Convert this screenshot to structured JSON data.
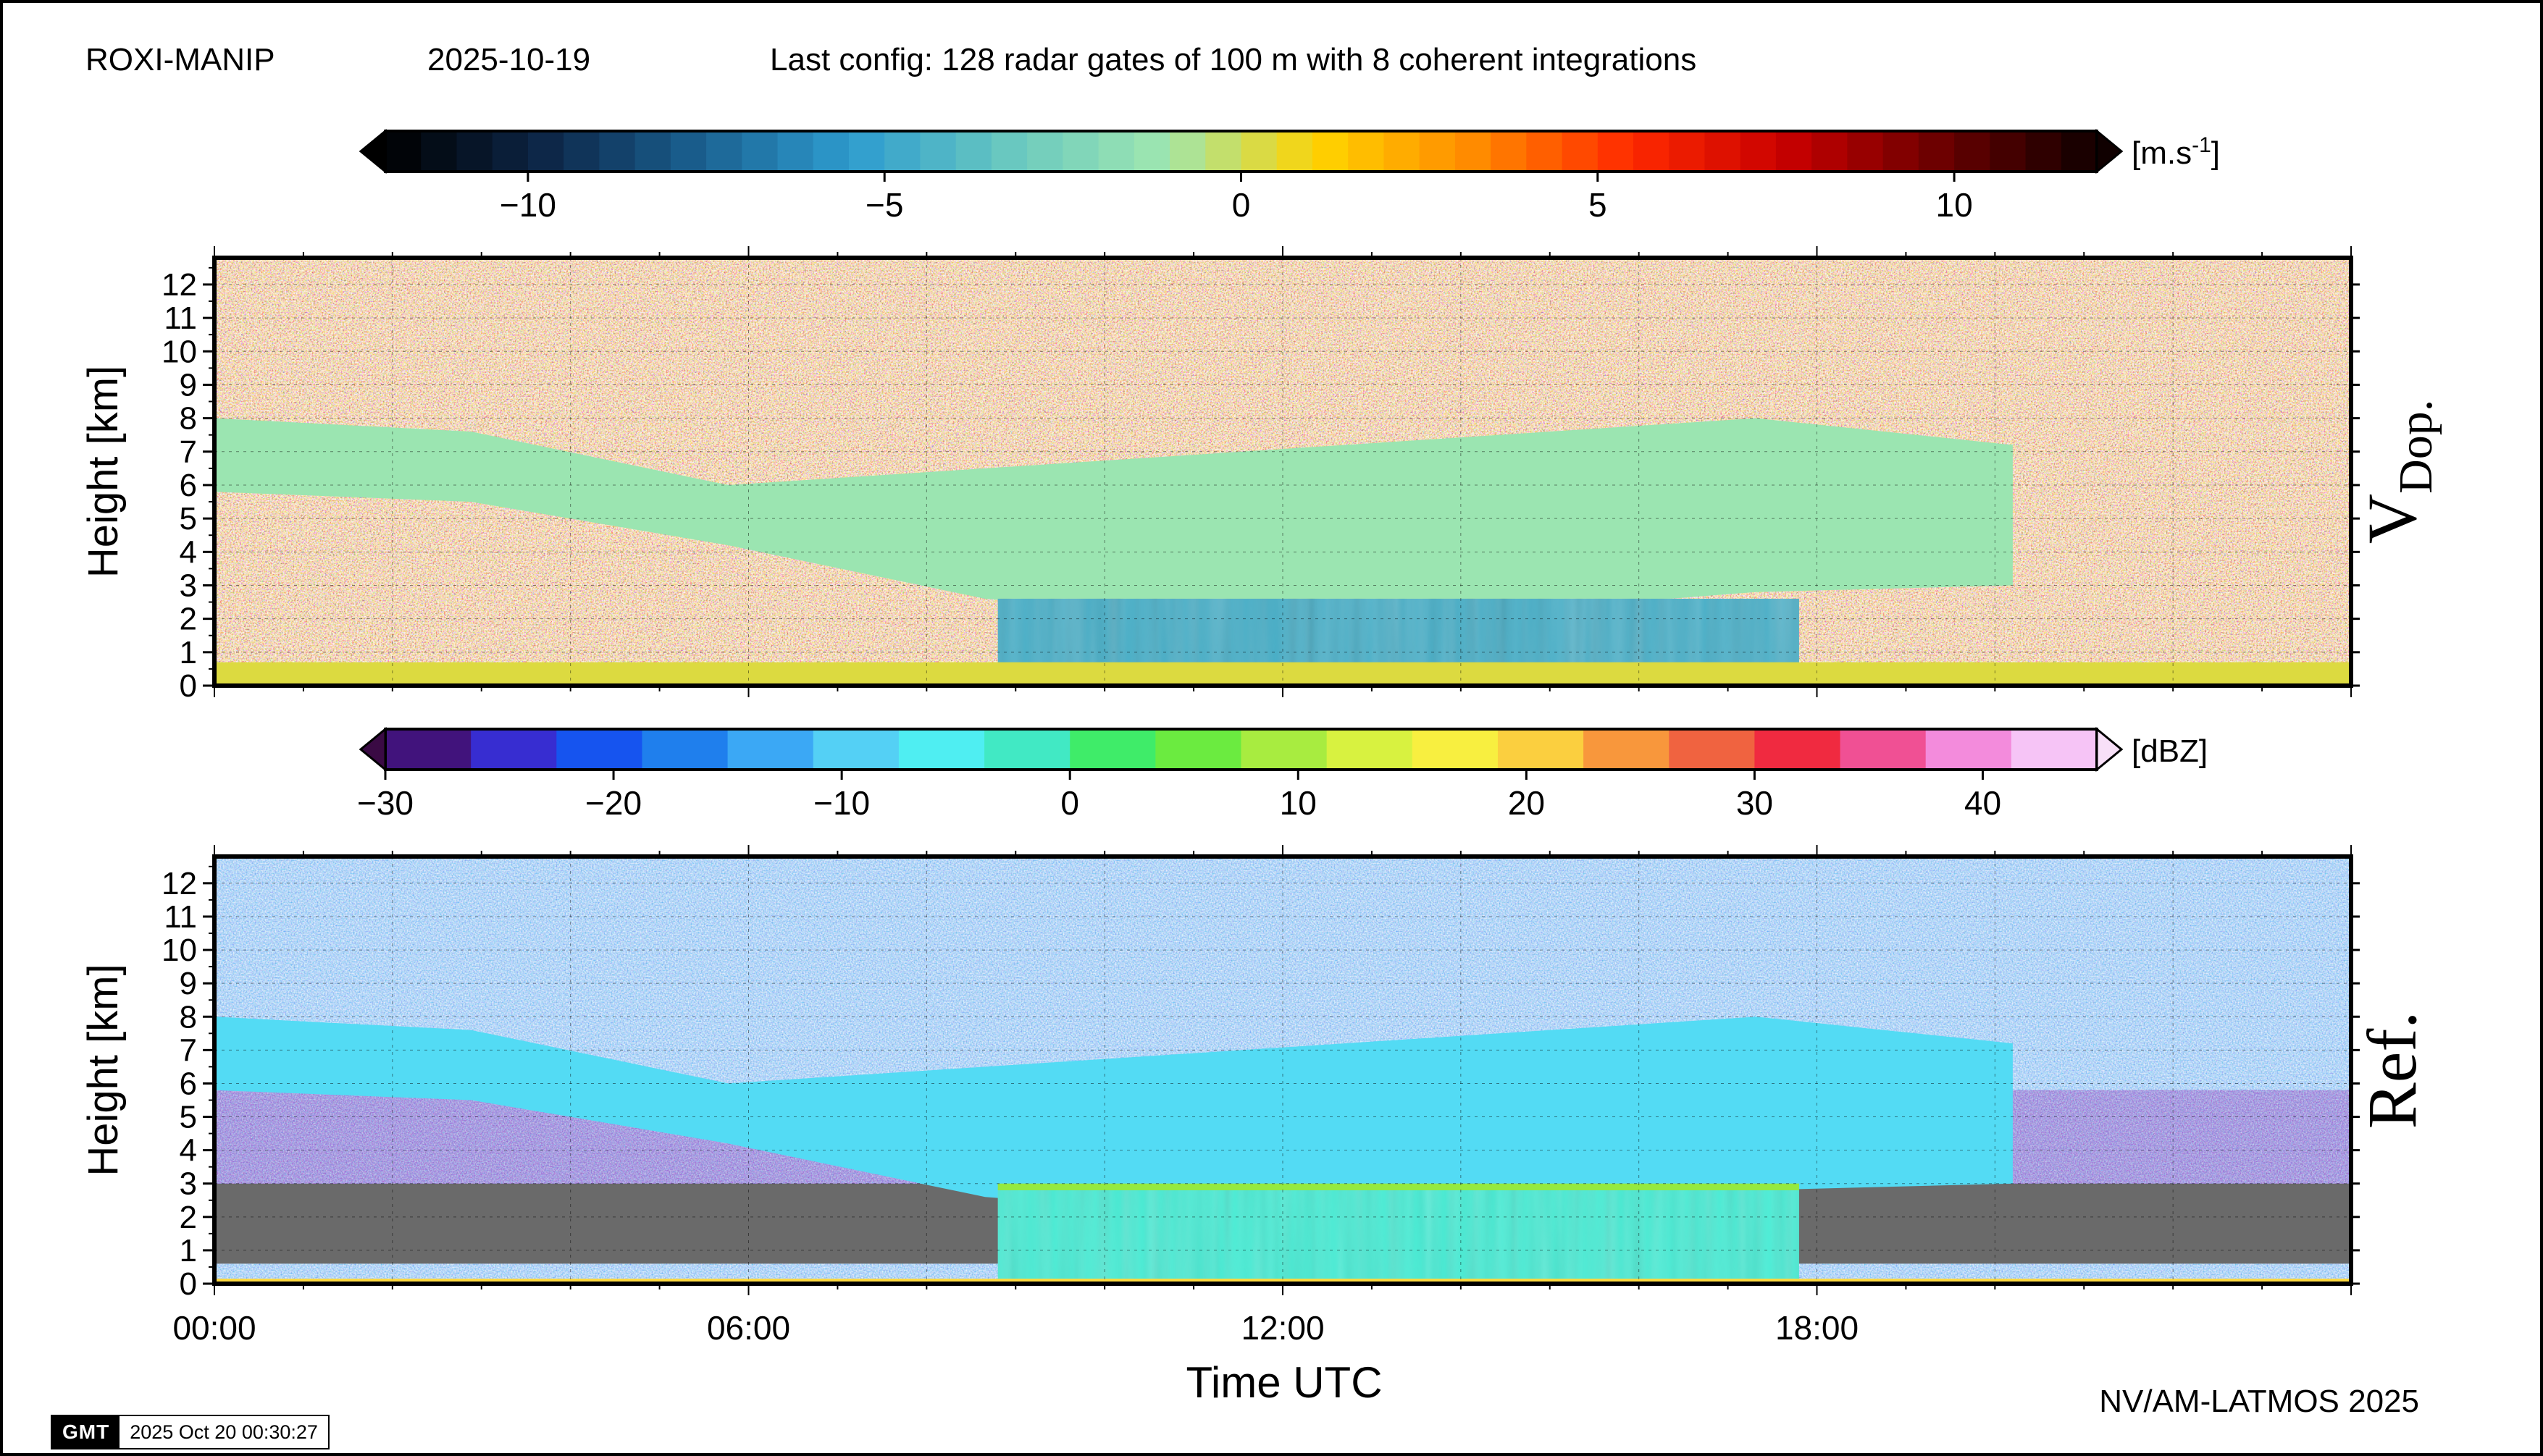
{
  "header": {
    "station": "ROXI-MANIP",
    "date": "2025-10-19",
    "config": "Last config: 128 radar gates of 100 m with 8 coherent integrations"
  },
  "footer": {
    "credit": "NV/AM-LATMOS 2025",
    "gmt_logo": "GMT",
    "gmt_timestamp": "2025 Oct 20 00:30:27"
  },
  "colors": {
    "velocity_stops": [
      "#000000",
      "#0d2546",
      "#1a5f8f",
      "#2e9ccf",
      "#68c8c0",
      "#9ee6b0",
      "#ffd300",
      "#ff8a00",
      "#ff2a00",
      "#c80000",
      "#6a0000",
      "#100000"
    ],
    "reflectivity_stops": [
      "#3a0a44",
      "#4a1fc0",
      "#1448f0",
      "#1a78ec",
      "#3aa6f5",
      "#55d2f5",
      "#4ef3f2",
      "#3de6b5",
      "#40ef40",
      "#8ee840",
      "#c8f040",
      "#f7f740",
      "#fcd840",
      "#f89a3c",
      "#f06040",
      "#f02040",
      "#f060b0",
      "#f4a2f4",
      "#f8e0f8"
    ]
  },
  "chart_data": [
    {
      "type": "heatmap",
      "panel_label": "V",
      "panel_label_sub": "Dop.",
      "variable": "Doppler velocity",
      "colorbar": {
        "unit_base": "[m.s",
        "unit_exp": "-1",
        "unit_close": "]",
        "range": [
          -12,
          12
        ],
        "ticks": [
          -10,
          -5,
          0,
          5,
          10
        ],
        "tick_labels": [
          "−10",
          "−5",
          "0",
          "5",
          "10"
        ]
      },
      "xlabel": "",
      "ylabel": "Height [km]",
      "ylim": [
        0,
        12.8
      ],
      "yticks": [
        0,
        1,
        2,
        3,
        4,
        5,
        6,
        7,
        8,
        9,
        10,
        11,
        12
      ],
      "xlim": [
        0,
        24
      ],
      "grid": true,
      "features": [
        {
          "name": "noise",
          "x": [
            0,
            24
          ],
          "height": [
            0,
            12.8
          ],
          "value": "random"
        },
        {
          "name": "cloud layer",
          "x": [
            0,
            20.2
          ],
          "base_km": [
            5.8,
            5.5,
            4.2,
            2.6,
            2.0,
            2.2,
            2.8,
            3.0
          ],
          "top_km": [
            8.0,
            7.6,
            6.0,
            6.5,
            7.0,
            7.5,
            8.0,
            7.2
          ],
          "value_ms": -1.2
        },
        {
          "name": "precipitation",
          "x": [
            8.8,
            17.8
          ],
          "height": [
            0.4,
            2.6
          ],
          "value_ms": -4.5
        },
        {
          "name": "surface layer",
          "x": [
            0,
            24
          ],
          "height": [
            0,
            0.7
          ],
          "value_ms": 0.3
        }
      ]
    },
    {
      "type": "heatmap",
      "panel_label": "Ref.",
      "variable": "Reflectivity",
      "colorbar": {
        "unit": "[dBZ]",
        "range": [
          -30,
          45
        ],
        "ticks": [
          -30,
          -20,
          -10,
          0,
          10,
          20,
          30,
          40
        ],
        "tick_labels": [
          "−30",
          "−20",
          "−10",
          "0",
          "10",
          "20",
          "30",
          "40"
        ]
      },
      "xlabel": "Time UTC",
      "ylabel": "Height [km]",
      "ylim": [
        0,
        12.8
      ],
      "yticks": [
        0,
        1,
        2,
        3,
        4,
        5,
        6,
        7,
        8,
        9,
        10,
        11,
        12
      ],
      "xlim": [
        0,
        24
      ],
      "xticks": [
        0,
        6,
        12,
        18
      ],
      "xtick_labels": [
        "00:00",
        "06:00",
        "12:00",
        "18:00"
      ],
      "grid": true,
      "features": [
        {
          "name": "background noise",
          "x": [
            0,
            24
          ],
          "height": [
            3,
            12.8
          ],
          "value_dbz": -24
        },
        {
          "name": "low-level noise",
          "x": [
            0,
            24
          ],
          "height": [
            0.6,
            5.8
          ],
          "value_dbz": -28
        },
        {
          "name": "cloud layer",
          "x": [
            0,
            20.2
          ],
          "base_km": [
            5.8,
            5.5,
            4.2,
            2.6,
            2.0,
            2.2,
            2.8,
            3.0
          ],
          "top_km": [
            8.0,
            7.6,
            6.0,
            6.5,
            7.0,
            7.5,
            8.0,
            7.2
          ],
          "value_dbz": -8
        },
        {
          "name": "precipitation",
          "x": [
            8.8,
            17.8
          ],
          "height": [
            0,
            3
          ],
          "value_dbz": -3
        },
        {
          "name": "melting layer",
          "x": [
            8.8,
            17.8
          ],
          "height": [
            2.8,
            3.0
          ],
          "value_dbz": 8
        },
        {
          "name": "surface line",
          "x": [
            0,
            24
          ],
          "height": [
            0,
            0.15
          ],
          "value_dbz": 20
        }
      ]
    }
  ]
}
